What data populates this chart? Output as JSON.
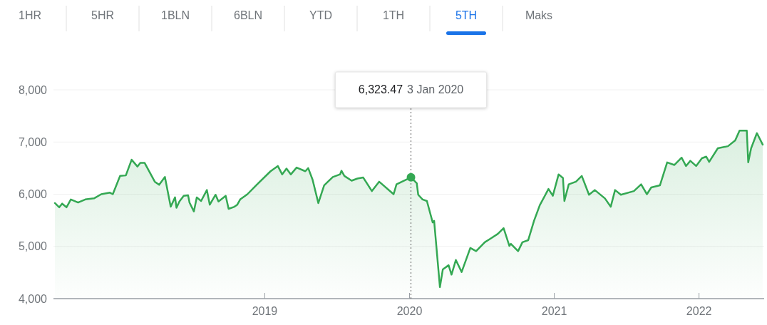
{
  "chart_data": {
    "type": "area",
    "color": "#34a853",
    "x": [
      2017.55,
      2017.58,
      2017.6,
      2017.63,
      2017.66,
      2017.71,
      2017.76,
      2017.82,
      2017.87,
      2017.93,
      2017.95,
      2018.0,
      2018.04,
      2018.08,
      2018.12,
      2018.14,
      2018.17,
      2018.24,
      2018.27,
      2018.31,
      2018.35,
      2018.38,
      2018.39,
      2018.41,
      2018.44,
      2018.47,
      2018.48,
      2018.51,
      2018.53,
      2018.56,
      2018.6,
      2018.62,
      2018.66,
      2018.68,
      2018.73,
      2018.75,
      2018.79,
      2018.81,
      2018.83,
      2018.88,
      2018.94,
      2019.04,
      2019.09,
      2019.12,
      2019.15,
      2019.18,
      2019.22,
      2019.28,
      2019.3,
      2019.33,
      2019.37,
      2019.41,
      2019.47,
      2019.52,
      2019.53,
      2019.55,
      2019.6,
      2019.64,
      2019.68,
      2019.74,
      2019.79,
      2019.89,
      2019.91,
      2020.01,
      2020.05,
      2020.06,
      2020.09,
      2020.12,
      2020.16,
      2020.17,
      2020.21,
      2020.23,
      2020.27,
      2020.29,
      2020.32,
      2020.36,
      2020.42,
      2020.46,
      2020.52,
      2020.56,
      2020.61,
      2020.65,
      2020.69,
      2020.7,
      2020.75,
      2020.78,
      2020.82,
      2020.86,
      2020.9,
      2020.96,
      2020.99,
      2021.03,
      2021.06,
      2021.07,
      2021.1,
      2021.15,
      2021.19,
      2021.24,
      2021.28,
      2021.35,
      2021.39,
      2021.42,
      2021.46,
      2021.55,
      2021.6,
      2021.64,
      2021.67,
      2021.73,
      2021.78,
      2021.83,
      2021.88,
      2021.91,
      2021.94,
      2021.98,
      2022.02,
      2022.05,
      2022.07,
      2022.13,
      2022.2,
      2022.25,
      2022.28,
      2022.33,
      2022.34,
      2022.36,
      2022.4,
      2022.44
    ],
    "values": [
      5830,
      5750,
      5820,
      5750,
      5900,
      5840,
      5900,
      5920,
      6000,
      6030,
      6000,
      6350,
      6360,
      6660,
      6530,
      6600,
      6600,
      6240,
      6180,
      6330,
      5760,
      5940,
      5740,
      5860,
      5970,
      5980,
      5840,
      5670,
      5940,
      5870,
      6080,
      5800,
      5990,
      5860,
      5970,
      5720,
      5760,
      5800,
      5900,
      6000,
      6170,
      6440,
      6540,
      6380,
      6490,
      6380,
      6510,
      6440,
      6500,
      6280,
      5830,
      6170,
      6330,
      6380,
      6450,
      6350,
      6260,
      6300,
      6320,
      6060,
      6240,
      6000,
      6190,
      6323.47,
      6210,
      5990,
      5900,
      5870,
      5460,
      5490,
      4220,
      4560,
      4640,
      4460,
      4740,
      4510,
      4970,
      4910,
      5080,
      5150,
      5240,
      5350,
      5010,
      5050,
      4910,
      5080,
      5120,
      5490,
      5790,
      6100,
      5970,
      6380,
      6310,
      5870,
      6190,
      6240,
      6350,
      5990,
      6080,
      5920,
      5760,
      6080,
      5990,
      6060,
      6190,
      6000,
      6130,
      6170,
      6610,
      6560,
      6700,
      6540,
      6640,
      6540,
      6690,
      6720,
      6620,
      6880,
      6920,
      7030,
      7220,
      7220,
      6610,
      6880,
      7170,
      6950
    ],
    "xlim": [
      2017.54,
      2022.45
    ],
    "xticks": [
      2019,
      2020,
      2021,
      2022
    ],
    "ylim": [
      4000,
      8000
    ],
    "yticks": [
      {
        "value": 4000,
        "label": "4,000"
      },
      {
        "value": 5000,
        "label": "5,000"
      },
      {
        "value": 6000,
        "label": "6,000"
      },
      {
        "value": 7000,
        "label": "7,000"
      },
      {
        "value": 8000,
        "label": "8,000"
      }
    ],
    "grid": "y",
    "ref_lines": [
      {
        "axis": "x",
        "value": 2020.01,
        "line_style": "dotted",
        "color": "#555555"
      }
    ],
    "annotations": [
      "6,323.47 3 Jan 2020",
      "1HR",
      "5HR",
      "1BLN",
      "6BLN",
      "YTD",
      "1TH",
      "5TH",
      "Maks"
    ]
  }
}
